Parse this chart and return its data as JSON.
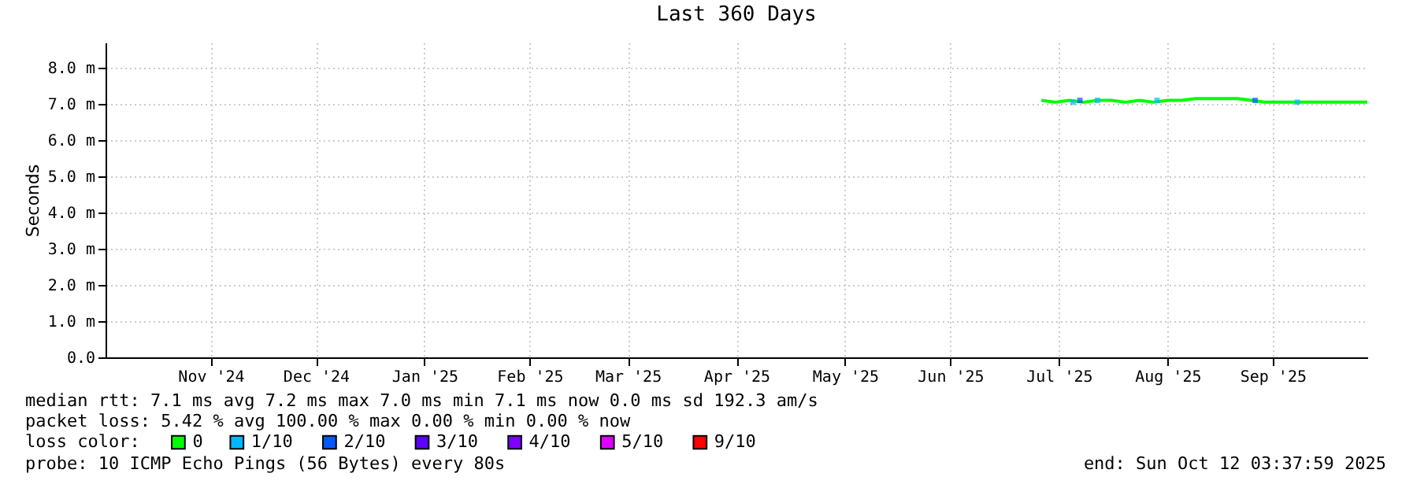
{
  "chart_data": {
    "type": "line",
    "title": "Last 360 Days",
    "ylabel": "Seconds",
    "legend_title": "loss color:",
    "legend": "bottom",
    "grid": true,
    "xlim": [
      "2024-10-17",
      "2025-10-12"
    ],
    "xticks": [
      {
        "value": "2024-11-16",
        "label": "Nov '24"
      },
      {
        "value": "2024-12-16",
        "label": "Dec '24"
      },
      {
        "value": "2025-01-16",
        "label": "Jan '25"
      },
      {
        "value": "2025-02-15",
        "label": "Feb '25"
      },
      {
        "value": "2025-03-15",
        "label": "Mar '25"
      },
      {
        "value": "2025-04-15",
        "label": "Apr '25"
      },
      {
        "value": "2025-05-16",
        "label": "May '25"
      },
      {
        "value": "2025-06-15",
        "label": "Jun '25"
      },
      {
        "value": "2025-07-16",
        "label": "Jul '25"
      },
      {
        "value": "2025-08-16",
        "label": "Aug '25"
      },
      {
        "value": "2025-09-15",
        "label": "Sep '25"
      }
    ],
    "ylim": [
      0,
      8.7
    ],
    "yticks": [
      {
        "value": 0,
        "label": "0.0"
      },
      {
        "value": 1,
        "label": "1.0 m"
      },
      {
        "value": 2,
        "label": "2.0 m"
      },
      {
        "value": 3,
        "label": "3.0 m"
      },
      {
        "value": 4,
        "label": "4.0 m"
      },
      {
        "value": 5,
        "label": "5.0 m"
      },
      {
        "value": 6,
        "label": "6.0 m"
      },
      {
        "value": 7,
        "label": "7.0 m"
      },
      {
        "value": 8,
        "label": "8.0 m"
      }
    ],
    "series": [
      {
        "name": "0",
        "color": "#00ff00",
        "x": [
          "2025-07-11",
          "2025-07-15",
          "2025-07-19",
          "2025-07-23",
          "2025-07-27",
          "2025-07-31",
          "2025-08-04",
          "2025-08-08",
          "2025-08-12",
          "2025-08-16",
          "2025-08-20",
          "2025-08-24",
          "2025-08-28",
          "2025-09-01",
          "2025-09-05",
          "2025-09-09",
          "2025-09-13",
          "2025-09-17",
          "2025-09-21",
          "2025-09-25",
          "2025-09-29",
          "2025-10-03",
          "2025-10-07",
          "2025-10-12"
        ],
        "values": [
          7.1,
          7.05,
          7.1,
          7.05,
          7.1,
          7.1,
          7.05,
          7.1,
          7.05,
          7.1,
          7.1,
          7.15,
          7.15,
          7.15,
          7.15,
          7.1,
          7.05,
          7.05,
          7.05,
          7.05,
          7.05,
          7.05,
          7.05,
          7.05
        ]
      },
      {
        "name": "1/10",
        "color": "#00b8ff",
        "type": "scatter",
        "marker": "square",
        "x": [
          "2025-07-20",
          "2025-07-27",
          "2025-08-13",
          "2025-09-22"
        ],
        "values": [
          7.05,
          7.1,
          7.1,
          7.05
        ]
      },
      {
        "name": "2/10",
        "color": "#0059ff",
        "type": "scatter",
        "marker": "square",
        "x": [
          "2025-07-22",
          "2025-09-10"
        ],
        "values": [
          7.1,
          7.1
        ]
      },
      {
        "name": "3/10",
        "color": "#5e00ff",
        "type": "scatter",
        "marker": "square"
      },
      {
        "name": "4/10",
        "color": "#7e00ff",
        "type": "scatter",
        "marker": "square"
      },
      {
        "name": "5/10",
        "color": "#dd00ff",
        "type": "scatter",
        "marker": "square"
      },
      {
        "name": "9/10",
        "color": "#ff0000",
        "type": "scatter",
        "marker": "square"
      }
    ],
    "annotations": [
      "median rtt:  7.1 ms avg  7.2 ms max  7.0 ms min  7.1 ms now  0.0 ms sd  192.3   am/s",
      "packet loss: 5.42 % avg  100.00 % max  0.00 % min  0.00 % now",
      "probe:       10 ICMP Echo Pings (56 Bytes) every 80s",
      "end: Sun Oct 12 03:37:59 2025"
    ]
  }
}
